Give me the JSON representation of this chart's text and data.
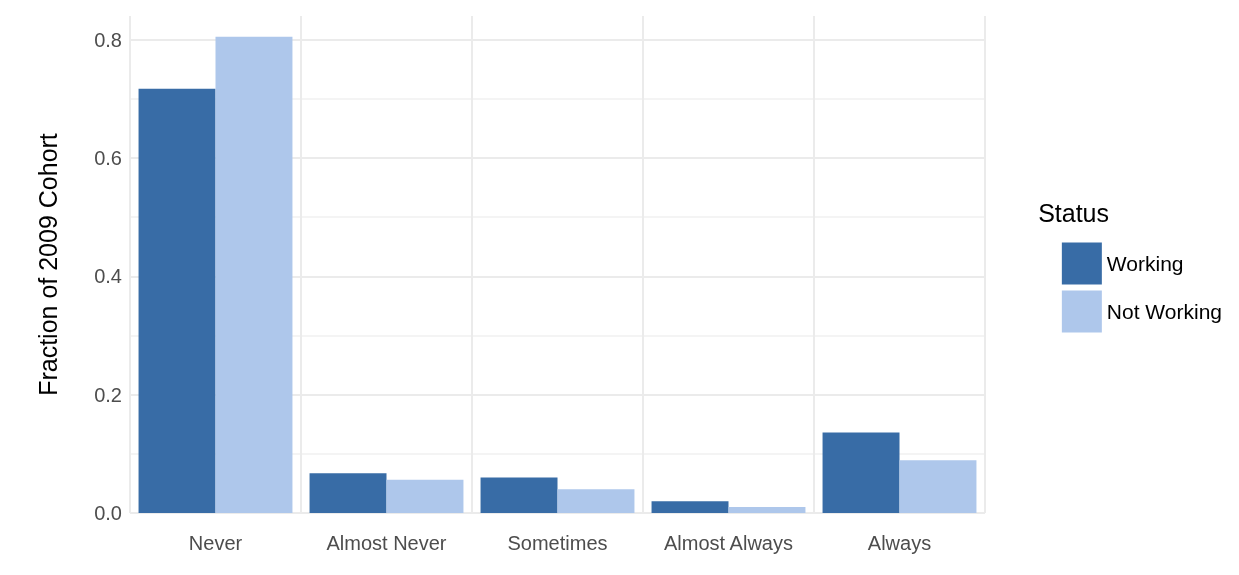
{
  "chart_data": {
    "type": "bar",
    "ylabel": "Fraction of 2009 Cohort",
    "legend_title": "Status",
    "categories": [
      "Never",
      "Almost Never",
      "Sometimes",
      "Almost Always",
      "Always"
    ],
    "series": [
      {
        "name": "Working",
        "color": "#386ca6",
        "values": [
          0.717,
          0.067,
          0.06,
          0.02,
          0.136
        ]
      },
      {
        "name": "Not Working",
        "color": "#aec7eb",
        "values": [
          0.805,
          0.056,
          0.04,
          0.01,
          0.089
        ]
      }
    ],
    "ylim": [
      0,
      0.84
    ],
    "yticks": [
      {
        "value": 0,
        "label": "0.0"
      },
      {
        "value": 0.2,
        "label": "0.2"
      },
      {
        "value": 0.4,
        "label": "0.4"
      },
      {
        "value": 0.6,
        "label": "0.6"
      },
      {
        "value": 0.8,
        "label": "0.8"
      }
    ],
    "grid": true,
    "legend": "right"
  }
}
